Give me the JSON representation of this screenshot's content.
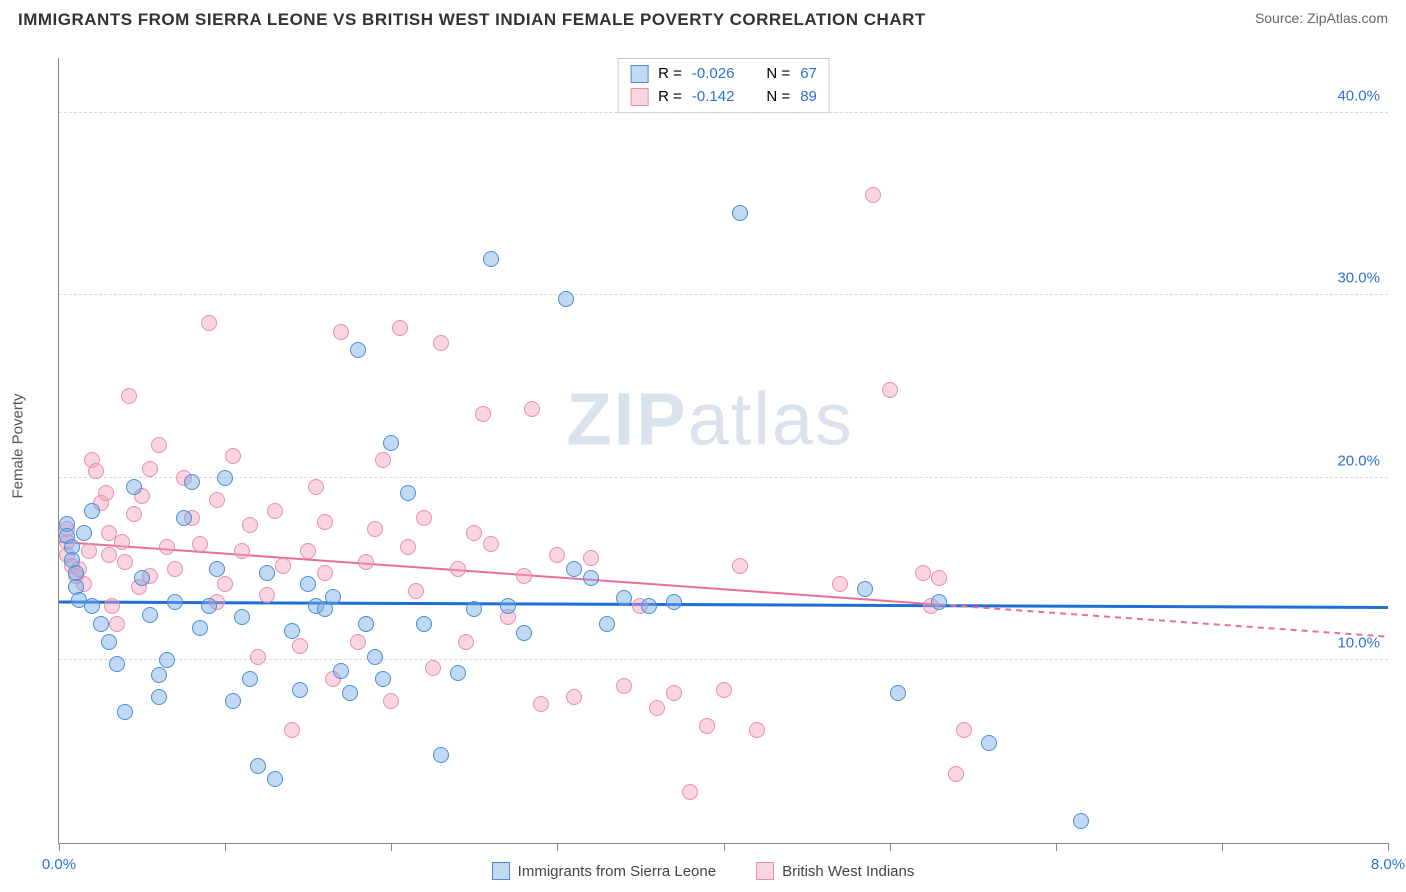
{
  "title": "IMMIGRANTS FROM SIERRA LEONE VS BRITISH WEST INDIAN FEMALE POVERTY CORRELATION CHART",
  "source_prefix": "Source: ",
  "source_name": "ZipAtlas.com",
  "y_axis_label": "Female Poverty",
  "watermark": {
    "bold": "ZIP",
    "rest": "atlas"
  },
  "chart": {
    "type": "scatter",
    "x_domain": [
      0,
      8
    ],
    "y_domain": [
      0,
      43
    ],
    "x_ticks": [
      0,
      1,
      2,
      3,
      4,
      5,
      6,
      7,
      8
    ],
    "x_tick_labels_shown": {
      "0": "0.0%",
      "8": "8.0%"
    },
    "y_gridlines": [
      10,
      20,
      30,
      40
    ],
    "y_tick_labels": {
      "10": "10.0%",
      "20": "20.0%",
      "30": "30.0%",
      "40": "40.0%"
    },
    "tick_label_color": "#2f6fd0",
    "grid_color": "#d9d9d9",
    "axis_color": "#888888",
    "background_color": "#ffffff",
    "point_radius": 8,
    "point_stroke_width": 1.5,
    "series": [
      {
        "key": "sierra_leone",
        "label": "Immigrants from Sierra Leone",
        "fill": "rgba(120,170,230,0.45)",
        "stroke": "#4a8fd6",
        "trend_color": "#1f6fd6",
        "trend_width": 3,
        "r_label": "R = ",
        "r_value": "-0.026",
        "n_label": "N = ",
        "n_value": "67",
        "trend": {
          "y_at_xmin": 13.2,
          "y_at_xmax": 12.9
        },
        "points": [
          [
            0.05,
            17.5
          ],
          [
            0.05,
            16.8
          ],
          [
            0.08,
            16.2
          ],
          [
            0.08,
            15.5
          ],
          [
            0.1,
            14.8
          ],
          [
            0.1,
            14.0
          ],
          [
            0.12,
            13.3
          ],
          [
            0.15,
            17.0
          ],
          [
            0.2,
            18.2
          ],
          [
            0.2,
            13.0
          ],
          [
            0.25,
            12.0
          ],
          [
            0.3,
            11.0
          ],
          [
            0.35,
            9.8
          ],
          [
            0.4,
            7.2
          ],
          [
            0.45,
            19.5
          ],
          [
            0.5,
            14.5
          ],
          [
            0.55,
            12.5
          ],
          [
            0.6,
            8.0
          ],
          [
            0.65,
            10.0
          ],
          [
            0.7,
            13.2
          ],
          [
            0.75,
            17.8
          ],
          [
            0.8,
            19.8
          ],
          [
            0.85,
            11.8
          ],
          [
            0.9,
            13.0
          ],
          [
            1.0,
            20.0
          ],
          [
            1.1,
            12.4
          ],
          [
            1.15,
            9.0
          ],
          [
            1.2,
            4.2
          ],
          [
            1.25,
            14.8
          ],
          [
            1.3,
            3.5
          ],
          [
            1.4,
            11.6
          ],
          [
            1.45,
            8.4
          ],
          [
            1.5,
            14.2
          ],
          [
            1.55,
            13.0
          ],
          [
            1.6,
            12.8
          ],
          [
            1.65,
            13.5
          ],
          [
            1.7,
            9.4
          ],
          [
            1.75,
            8.2
          ],
          [
            1.8,
            27.0
          ],
          [
            1.85,
            12.0
          ],
          [
            1.9,
            10.2
          ],
          [
            1.95,
            9.0
          ],
          [
            2.0,
            21.9
          ],
          [
            2.1,
            19.2
          ],
          [
            2.2,
            12.0
          ],
          [
            2.3,
            4.8
          ],
          [
            2.4,
            9.3
          ],
          [
            2.5,
            12.8
          ],
          [
            2.6,
            32.0
          ],
          [
            2.7,
            13.0
          ],
          [
            2.8,
            11.5
          ],
          [
            3.05,
            29.8
          ],
          [
            3.1,
            15.0
          ],
          [
            3.2,
            14.5
          ],
          [
            3.3,
            12.0
          ],
          [
            3.4,
            13.4
          ],
          [
            3.55,
            13.0
          ],
          [
            3.7,
            13.2
          ],
          [
            4.1,
            34.5
          ],
          [
            4.85,
            13.9
          ],
          [
            5.05,
            8.2
          ],
          [
            5.3,
            13.2
          ],
          [
            5.6,
            5.5
          ],
          [
            6.15,
            1.2
          ],
          [
            0.6,
            9.2
          ],
          [
            1.05,
            7.8
          ],
          [
            0.95,
            15.0
          ]
        ]
      },
      {
        "key": "british_west_indian",
        "label": "British West Indians",
        "fill": "rgba(245,160,190,0.45)",
        "stroke": "#e88fb0",
        "trend_color": "#e86f9a",
        "trend_width": 2,
        "trend_dash_after_x": 5.3,
        "r_label": "R = ",
        "r_value": "-0.142",
        "n_label": "N = ",
        "n_value": "89",
        "trend": {
          "y_at_xmin": 16.5,
          "y_at_xmax": 11.3
        },
        "points": [
          [
            0.05,
            16.5
          ],
          [
            0.05,
            15.8
          ],
          [
            0.08,
            15.2
          ],
          [
            0.1,
            14.6
          ],
          [
            0.12,
            15.0
          ],
          [
            0.15,
            14.2
          ],
          [
            0.18,
            16.0
          ],
          [
            0.2,
            21.0
          ],
          [
            0.22,
            20.4
          ],
          [
            0.25,
            18.6
          ],
          [
            0.28,
            19.2
          ],
          [
            0.3,
            17.0
          ],
          [
            0.32,
            13.0
          ],
          [
            0.35,
            12.0
          ],
          [
            0.38,
            16.5
          ],
          [
            0.4,
            15.4
          ],
          [
            0.42,
            24.5
          ],
          [
            0.45,
            18.0
          ],
          [
            0.48,
            14.0
          ],
          [
            0.5,
            19.0
          ],
          [
            0.55,
            20.5
          ],
          [
            0.6,
            21.8
          ],
          [
            0.65,
            16.2
          ],
          [
            0.7,
            15.0
          ],
          [
            0.75,
            20.0
          ],
          [
            0.8,
            17.8
          ],
          [
            0.85,
            16.4
          ],
          [
            0.9,
            28.5
          ],
          [
            0.95,
            18.8
          ],
          [
            1.0,
            14.2
          ],
          [
            1.05,
            21.2
          ],
          [
            1.1,
            16.0
          ],
          [
            1.15,
            17.4
          ],
          [
            1.2,
            10.2
          ],
          [
            1.25,
            13.6
          ],
          [
            1.3,
            18.2
          ],
          [
            1.35,
            15.2
          ],
          [
            1.4,
            6.2
          ],
          [
            1.45,
            10.8
          ],
          [
            1.5,
            16.0
          ],
          [
            1.55,
            19.5
          ],
          [
            1.6,
            14.8
          ],
          [
            1.65,
            9.0
          ],
          [
            1.7,
            28.0
          ],
          [
            1.8,
            11.0
          ],
          [
            1.85,
            15.4
          ],
          [
            1.9,
            17.2
          ],
          [
            1.95,
            21.0
          ],
          [
            2.0,
            7.8
          ],
          [
            2.05,
            28.2
          ],
          [
            2.1,
            16.2
          ],
          [
            2.15,
            13.8
          ],
          [
            2.2,
            17.8
          ],
          [
            2.25,
            9.6
          ],
          [
            2.3,
            27.4
          ],
          [
            2.4,
            15.0
          ],
          [
            2.5,
            17.0
          ],
          [
            2.55,
            23.5
          ],
          [
            2.6,
            16.4
          ],
          [
            2.7,
            12.4
          ],
          [
            2.8,
            14.6
          ],
          [
            2.85,
            23.8
          ],
          [
            2.9,
            7.6
          ],
          [
            3.0,
            15.8
          ],
          [
            3.1,
            8.0
          ],
          [
            3.2,
            15.6
          ],
          [
            3.4,
            8.6
          ],
          [
            3.5,
            13.0
          ],
          [
            3.6,
            7.4
          ],
          [
            3.7,
            8.2
          ],
          [
            3.8,
            2.8
          ],
          [
            3.9,
            6.4
          ],
          [
            4.0,
            8.4
          ],
          [
            4.1,
            15.2
          ],
          [
            4.2,
            6.2
          ],
          [
            4.7,
            14.2
          ],
          [
            4.9,
            35.5
          ],
          [
            5.0,
            24.8
          ],
          [
            5.2,
            14.8
          ],
          [
            5.25,
            13.0
          ],
          [
            5.3,
            14.5
          ],
          [
            5.4,
            3.8
          ],
          [
            5.45,
            6.2
          ],
          [
            0.3,
            15.8
          ],
          [
            0.55,
            14.6
          ],
          [
            0.95,
            13.2
          ],
          [
            1.6,
            17.6
          ],
          [
            2.45,
            11.0
          ],
          [
            0.05,
            17.2
          ]
        ]
      }
    ]
  }
}
